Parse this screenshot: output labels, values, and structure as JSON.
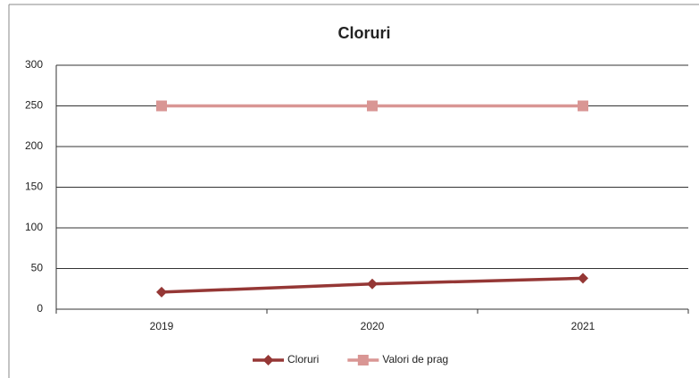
{
  "chart_data": {
    "type": "line",
    "title": "Cloruri",
    "categories": [
      "2019",
      "2020",
      "2021"
    ],
    "series": [
      {
        "name": "Cloruri",
        "color": "#953735",
        "marker": "diamond",
        "values": [
          21,
          31,
          38
        ]
      },
      {
        "name": "Valori de prag",
        "color": "#d99694",
        "marker": "square",
        "values": [
          250,
          250,
          250
        ]
      }
    ],
    "ylim": [
      0,
      300
    ],
    "yticks": [
      0,
      50,
      100,
      150,
      200,
      250,
      300
    ],
    "grid": true,
    "legend": "bottom"
  }
}
